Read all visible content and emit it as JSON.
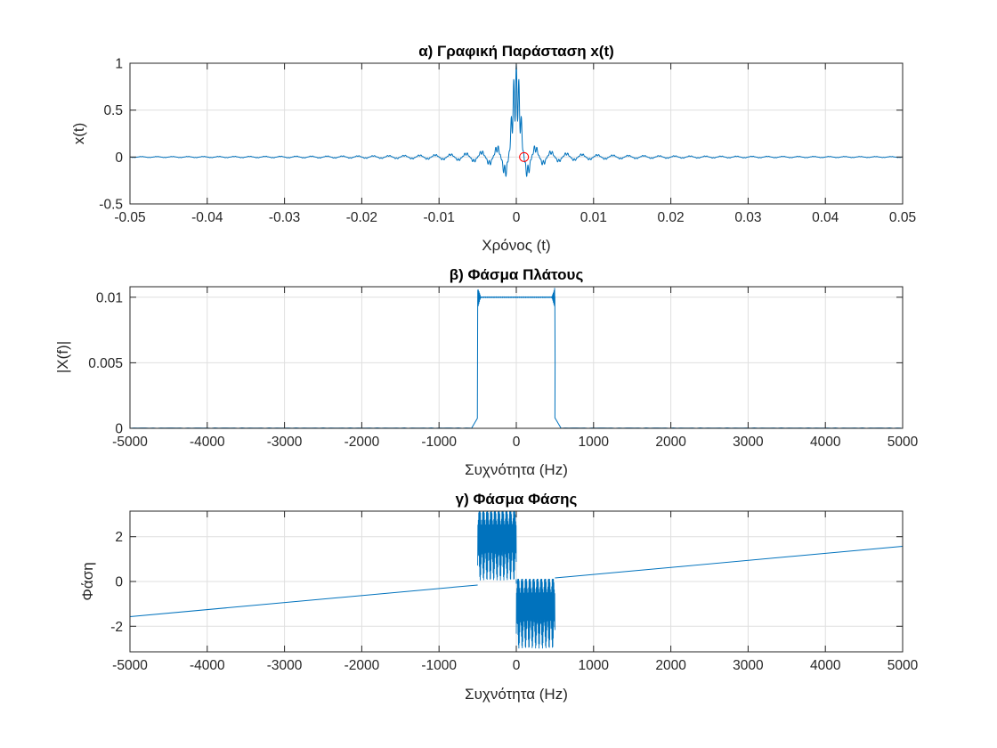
{
  "figure": {
    "background": "#ffffff",
    "line_color": "#0072bd",
    "marker_color": "#ff0000",
    "grid_color": "#dfdfdf",
    "axis_color": "#262626"
  },
  "chart_data": [
    {
      "type": "line",
      "title": "α) Γραφική Παράσταση x(t)",
      "xlabel": "Χρόνος (t)",
      "ylabel": "x(t)",
      "xlim": [
        -0.05,
        0.05
      ],
      "ylim": [
        -0.5,
        1
      ],
      "xticks": [
        -0.05,
        -0.04,
        -0.03,
        -0.02,
        -0.01,
        0,
        0.01,
        0.02,
        0.03,
        0.04,
        0.05
      ],
      "xtick_labels": [
        "-0.05",
        "-0.04",
        "-0.03",
        "-0.02",
        "-0.01",
        "0",
        "0.01",
        "0.02",
        "0.03",
        "0.04",
        "0.05"
      ],
      "yticks": [
        -0.5,
        0,
        0.5,
        1
      ],
      "ytick_labels": [
        "-0.5",
        "0",
        "0.5",
        "1"
      ],
      "grid": true,
      "series": [
        {
          "kind": "sinc",
          "peak": 1,
          "main_lobe_half_width": 0.001,
          "modulation_period": 0.000667,
          "x_range": [
            -0.05,
            0.05
          ]
        }
      ],
      "marker": {
        "shape": "circle",
        "x": 0.001,
        "y": 0
      }
    },
    {
      "type": "line",
      "title": "β) Φάσμα Πλάτους",
      "xlabel": "Συχνότητα (Hz)",
      "ylabel": "|X(f)|",
      "xlim": [
        -5000,
        5000
      ],
      "ylim": [
        0,
        0.0108
      ],
      "xticks": [
        -5000,
        -4000,
        -3000,
        -2000,
        -1000,
        0,
        1000,
        2000,
        3000,
        4000,
        5000
      ],
      "xtick_labels": [
        "-5000",
        "-4000",
        "-3000",
        "-2000",
        "-1000",
        "0",
        "1000",
        "2000",
        "3000",
        "4000",
        "5000"
      ],
      "yticks": [
        0,
        0.005,
        0.01
      ],
      "ytick_labels": [
        "0",
        "0.005",
        "0.01"
      ],
      "grid": true,
      "series": [
        {
          "kind": "rect",
          "band_edges": [
            -500,
            500
          ],
          "level": 0.01,
          "edge_ripple_max": 0.0108
        }
      ]
    },
    {
      "type": "line",
      "title": "γ) Φάσμα Φάσης",
      "xlabel": "Συχνότητα (Hz)",
      "ylabel": "Φάση",
      "xlim": [
        -5000,
        5000
      ],
      "ylim": [
        -3.1416,
        3.1416
      ],
      "xticks": [
        -5000,
        -4000,
        -3000,
        -2000,
        -1000,
        0,
        1000,
        2000,
        3000,
        4000,
        5000
      ],
      "xtick_labels": [
        "-5000",
        "-4000",
        "-3000",
        "-2000",
        "-1000",
        "0",
        "1000",
        "2000",
        "3000",
        "4000",
        "5000"
      ],
      "yticks": [
        -2,
        0,
        2
      ],
      "ytick_labels": [
        "-2",
        "0",
        "2"
      ],
      "grid": true,
      "series": [
        {
          "kind": "phase",
          "linear_phase_endpoints": [
            [
              -5000,
              -1.57
            ],
            [
              5000,
              1.57
            ]
          ],
          "band_edges": [
            -500,
            500
          ],
          "negative_band_range": [
            -0.1,
            3.1416
          ],
          "positive_band_range": [
            -3.1416,
            0.1
          ]
        }
      ]
    }
  ]
}
